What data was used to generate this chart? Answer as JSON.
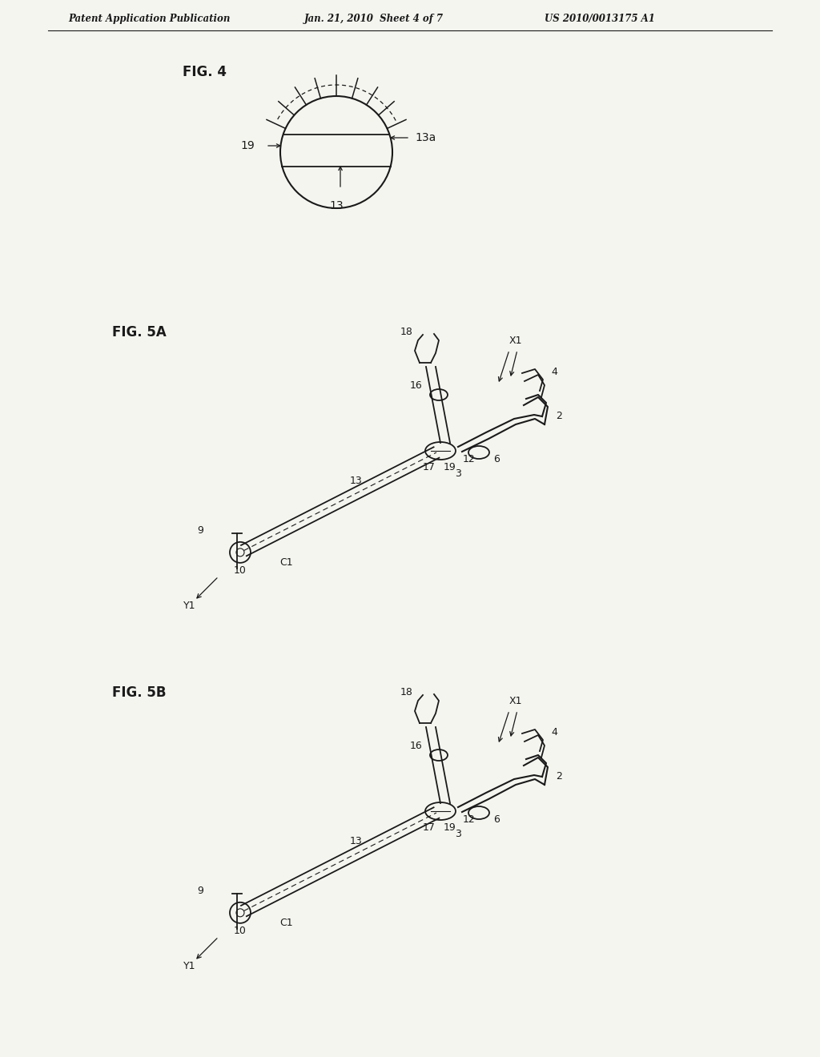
{
  "header_left": "Patent Application Publication",
  "header_mid": "Jan. 21, 2010  Sheet 4 of 7",
  "header_right": "US 2010/0013175 A1",
  "fig4_label": "FIG. 4",
  "fig5a_label": "FIG. 5A",
  "fig5b_label": "FIG. 5B",
  "bg_color": "#f5f5f0",
  "line_color": "#1a1a1a",
  "page_bg": "#f0f0eb"
}
